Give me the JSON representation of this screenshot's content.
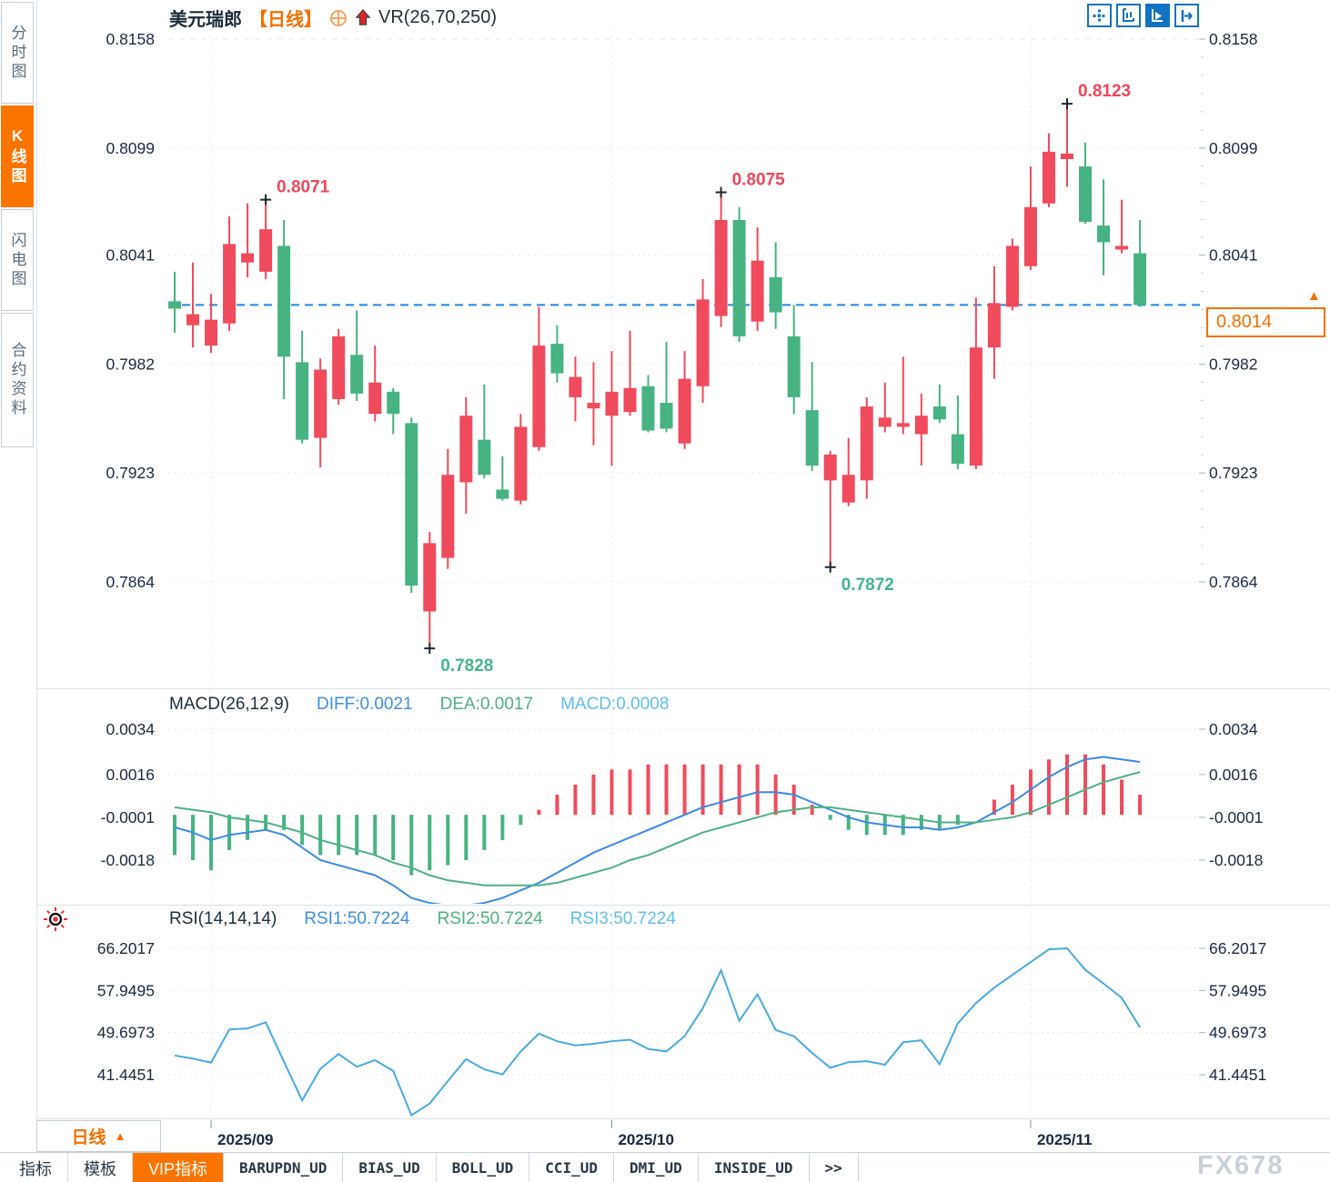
{
  "header": {
    "symbol": "美元瑞郎",
    "period_tag": "【日线】",
    "indicator": "VR(26,70,250)"
  },
  "sidebar": {
    "items": [
      {
        "label": "分时图",
        "active": false
      },
      {
        "label": "K线图",
        "active": true
      },
      {
        "label": "闪电图",
        "active": false
      },
      {
        "label": "合约资料",
        "active": false
      }
    ]
  },
  "toolbar": {
    "icons": [
      {
        "name": "pan-crosshair",
        "active": false
      },
      {
        "name": "axis-scale",
        "active": false
      },
      {
        "name": "trend-scale",
        "active": true
      },
      {
        "name": "exit-right",
        "active": false
      }
    ]
  },
  "price_box": {
    "value": "0.8014",
    "marker": "▲"
  },
  "macd_header": {
    "title": "MACD(26,12,9)",
    "diff": "DIFF:0.0021",
    "dea": "DEA:0.0017",
    "macd": "MACD:0.0008"
  },
  "rsi_header": {
    "title": "RSI(14,14,14)",
    "rsi1": "RSI1:50.7224",
    "rsi2": "RSI2:50.7224",
    "rsi3": "RSI3:50.7224"
  },
  "timeframe_selector": {
    "label": "日线",
    "marker": "▲"
  },
  "bottom_tabs": [
    {
      "label": "指标",
      "active": false,
      "mono": false
    },
    {
      "label": "模板",
      "active": false,
      "mono": false
    },
    {
      "label": "VIP指标",
      "active": true,
      "mono": false
    },
    {
      "label": "BARUPDN_UD",
      "active": false,
      "mono": true
    },
    {
      "label": "BIAS_UD",
      "active": false,
      "mono": true
    },
    {
      "label": "BOLL_UD",
      "active": false,
      "mono": true
    },
    {
      "label": "CCI_UD",
      "active": false,
      "mono": true
    },
    {
      "label": "DMI_UD",
      "active": false,
      "mono": true
    },
    {
      "label": "INSIDE_UD",
      "active": false,
      "mono": true
    },
    {
      "label": ">>",
      "active": false,
      "mono": true
    }
  ],
  "watermark": "FX678",
  "colors": {
    "accent_orange": "#fb7400",
    "icon_blue": "#1273c2",
    "axis_text": "#1b2940"
  },
  "chart_data": {
    "type": "candlestick",
    "title": "美元瑞郎",
    "period": "日线",
    "indicator_label": "VR(26,70,250)",
    "price_axis": {
      "ticks": [
        "0.8158",
        "0.8099",
        "0.8041",
        "0.7982",
        "0.7923",
        "0.7864"
      ]
    },
    "current_price": 0.8014,
    "months": {
      "labels": [
        "2025/09",
        "2025/10",
        "2025/11"
      ],
      "indices": [
        2,
        24,
        47
      ]
    },
    "annotations": [
      {
        "text": "0.8071",
        "index": 5,
        "price": 0.8071,
        "side": "high"
      },
      {
        "text": "0.7828",
        "index": 14,
        "price": 0.7828,
        "side": "low"
      },
      {
        "text": "0.8075",
        "index": 30,
        "price": 0.8075,
        "side": "high"
      },
      {
        "text": "0.7872",
        "index": 36,
        "price": 0.7872,
        "side": "low"
      },
      {
        "text": "0.8123",
        "index": 49,
        "price": 0.8123,
        "side": "high"
      }
    ],
    "candles": [
      [
        0.8016,
        0.8032,
        0.7999,
        0.8012
      ],
      [
        0.8003,
        0.8037,
        0.7991,
        0.8009
      ],
      [
        0.7992,
        0.802,
        0.7988,
        0.8006
      ],
      [
        0.8004,
        0.8062,
        0.8,
        0.8047
      ],
      [
        0.8037,
        0.8069,
        0.8029,
        0.8042
      ],
      [
        0.8032,
        0.8071,
        0.8028,
        0.8055
      ],
      [
        0.8046,
        0.806,
        0.7963,
        0.7986
      ],
      [
        0.7983,
        0.8,
        0.7939,
        0.7941
      ],
      [
        0.7942,
        0.7985,
        0.7926,
        0.7979
      ],
      [
        0.7963,
        0.8001,
        0.796,
        0.7997
      ],
      [
        0.7987,
        0.8011,
        0.7962,
        0.7966
      ],
      [
        0.7955,
        0.7992,
        0.7951,
        0.7972
      ],
      [
        0.7967,
        0.7969,
        0.7944,
        0.7955
      ],
      [
        0.795,
        0.7953,
        0.7858,
        0.7862
      ],
      [
        0.7848,
        0.7891,
        0.7828,
        0.7885
      ],
      [
        0.7877,
        0.7936,
        0.7871,
        0.7922
      ],
      [
        0.7918,
        0.7964,
        0.7901,
        0.7954
      ],
      [
        0.7941,
        0.7971,
        0.792,
        0.7922
      ],
      [
        0.7914,
        0.7932,
        0.7908,
        0.7909
      ],
      [
        0.7908,
        0.7955,
        0.7906,
        0.7948
      ],
      [
        0.7937,
        0.8013,
        0.7935,
        0.7992
      ],
      [
        0.7993,
        0.8003,
        0.7972,
        0.7977
      ],
      [
        0.7964,
        0.7986,
        0.7951,
        0.7975
      ],
      [
        0.7958,
        0.7983,
        0.7938,
        0.7961
      ],
      [
        0.7954,
        0.7989,
        0.7927,
        0.7967
      ],
      [
        0.7956,
        0.8,
        0.7954,
        0.7969
      ],
      [
        0.797,
        0.7976,
        0.7945,
        0.7946
      ],
      [
        0.7961,
        0.7994,
        0.7945,
        0.7947
      ],
      [
        0.7939,
        0.7989,
        0.7936,
        0.7974
      ],
      [
        0.797,
        0.8028,
        0.7961,
        0.8017
      ],
      [
        0.8008,
        0.8075,
        0.8002,
        0.806
      ],
      [
        0.806,
        0.8067,
        0.7994,
        0.7997
      ],
      [
        0.8005,
        0.8056,
        0.8,
        0.8038
      ],
      [
        0.8029,
        0.8048,
        0.8001,
        0.801
      ],
      [
        0.7997,
        0.8014,
        0.7955,
        0.7964
      ],
      [
        0.7957,
        0.7983,
        0.7924,
        0.7927
      ],
      [
        0.7919,
        0.7935,
        0.7872,
        0.7933
      ],
      [
        0.7907,
        0.7942,
        0.7905,
        0.7922
      ],
      [
        0.7919,
        0.7964,
        0.7909,
        0.7959
      ],
      [
        0.7948,
        0.7972,
        0.7945,
        0.7953
      ],
      [
        0.7948,
        0.7986,
        0.7944,
        0.795
      ],
      [
        0.7944,
        0.7966,
        0.7927,
        0.7954
      ],
      [
        0.7959,
        0.7971,
        0.795,
        0.7952
      ],
      [
        0.7944,
        0.7965,
        0.7925,
        0.7928
      ],
      [
        0.7927,
        0.8018,
        0.7925,
        0.7991
      ],
      [
        0.7991,
        0.8035,
        0.7974,
        0.8015
      ],
      [
        0.8013,
        0.805,
        0.8011,
        0.8046
      ],
      [
        0.8035,
        0.8089,
        0.8033,
        0.8067
      ],
      [
        0.8069,
        0.8107,
        0.8067,
        0.8097
      ],
      [
        0.8093,
        0.8123,
        0.8078,
        0.8096
      ],
      [
        0.8089,
        0.8102,
        0.8058,
        0.8059
      ],
      [
        0.8057,
        0.8082,
        0.803,
        0.8048
      ],
      [
        0.8044,
        0.8071,
        0.8042,
        0.8046
      ],
      [
        0.8042,
        0.806,
        0.8013,
        0.8014
      ]
    ],
    "macd": {
      "params": "(26,12,9)",
      "diff": 0.0021,
      "dea": 0.0017,
      "macd": 0.0008,
      "axis_ticks": [
        "0.0034",
        "0.0016",
        "-0.0001",
        "-0.0018"
      ],
      "diff_series": [
        -0.0005,
        -0.0007,
        -0.001,
        -0.0008,
        -0.0007,
        -0.0006,
        -0.0008,
        -0.0013,
        -0.0018,
        -0.002,
        -0.0022,
        -0.0024,
        -0.0028,
        -0.0033,
        -0.0035,
        -0.0036,
        -0.0036,
        -0.0035,
        -0.0033,
        -0.003,
        -0.0027,
        -0.0023,
        -0.0019,
        -0.0015,
        -0.0012,
        -0.0009,
        -0.0006,
        -0.0003,
        0.0,
        0.0003,
        0.0005,
        0.0007,
        0.0009,
        0.0009,
        0.0008,
        0.0005,
        0.0002,
        -0.0001,
        -0.0003,
        -0.0004,
        -0.0005,
        -0.0005,
        -0.0006,
        -0.0005,
        -0.0003,
        0.0001,
        0.0005,
        0.001,
        0.0015,
        0.0019,
        0.0022,
        0.0023,
        0.0022,
        0.0021
      ],
      "dea_series": [
        0.0003,
        0.0002,
        0.0001,
        -0.0001,
        -0.0002,
        -0.0003,
        -0.0005,
        -0.0007,
        -0.001,
        -0.0012,
        -0.0014,
        -0.0016,
        -0.0019,
        -0.0021,
        -0.0024,
        -0.0026,
        -0.0027,
        -0.0028,
        -0.0028,
        -0.0028,
        -0.0028,
        -0.0027,
        -0.0025,
        -0.0023,
        -0.0021,
        -0.0018,
        -0.0016,
        -0.0013,
        -0.001,
        -0.0007,
        -0.0005,
        -0.0003,
        -0.0001,
        0.0001,
        0.0002,
        0.0003,
        0.0003,
        0.0002,
        0.0001,
        0.0,
        -0.0001,
        -0.0002,
        -0.0003,
        -0.0003,
        -0.0003,
        -0.0002,
        -0.0001,
        0.0001,
        0.0004,
        0.0007,
        0.001,
        0.0013,
        0.0015,
        0.0017
      ]
    },
    "rsi": {
      "params": "(14,14,14)",
      "rsi1": 50.7224,
      "rsi2": 50.7224,
      "rsi3": 50.7224,
      "axis_ticks": [
        "66.2017",
        "57.9495",
        "49.6973",
        "41.4451"
      ],
      "series": [
        45.2,
        44.6,
        43.8,
        50.3,
        50.5,
        51.7,
        44.0,
        36.4,
        42.6,
        45.5,
        43.0,
        44.3,
        42.2,
        33.5,
        35.8,
        40.2,
        44.5,
        42.5,
        41.5,
        46.0,
        49.5,
        48.0,
        47.2,
        47.5,
        48.0,
        48.3,
        46.5,
        46.0,
        49.0,
        54.5,
        61.9,
        52.0,
        57.2,
        50.2,
        49.0,
        45.7,
        42.8,
        43.9,
        44.1,
        43.4,
        47.8,
        48.2,
        43.5,
        51.5,
        55.5,
        58.5,
        61.0,
        63.5,
        66.0,
        66.2,
        62.0,
        59.3,
        56.5,
        50.7
      ]
    },
    "colors": {
      "up": "#ef4b5c",
      "down": "#47b382",
      "diff_line": "#3c8ce0",
      "dea_line": "#4fb184",
      "rsi_line": "#49abdf",
      "current_line": "#1f87e8",
      "annotation_high": "#f0465c",
      "annotation_low": "#45b58d",
      "grid": "#e4e8ed",
      "axis_text": "#1b2940"
    }
  }
}
